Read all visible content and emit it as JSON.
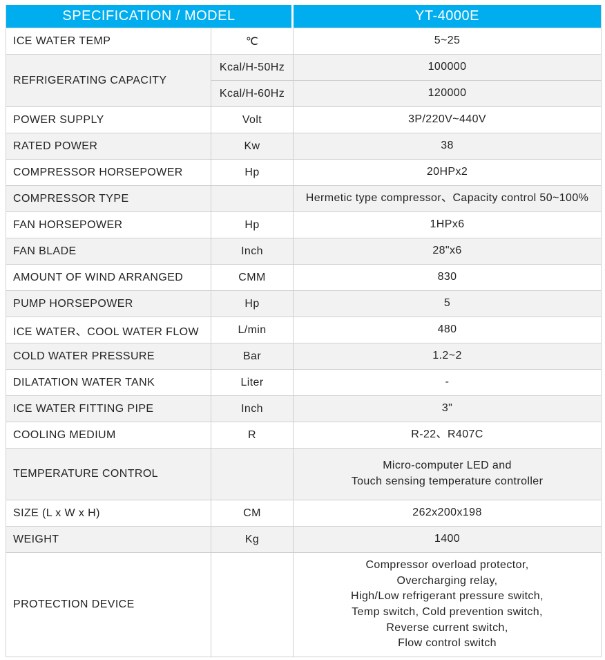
{
  "table": {
    "header": {
      "left": "SPECIFICATION / MODEL",
      "right": "YT-4000E"
    },
    "rows": [
      {
        "spec": "ICE WATER TEMP",
        "unit": "℃",
        "value": "5~25"
      },
      {
        "spec": "REFRIGERATING CAPACITY",
        "unit": "Kcal/H-50Hz",
        "value": "100000"
      },
      {
        "unit": "Kcal/H-60Hz",
        "value": "120000"
      },
      {
        "spec": "POWER SUPPLY",
        "unit": "Volt",
        "value": "3P/220V~440V"
      },
      {
        "spec": "RATED POWER",
        "unit": "Kw",
        "value": "38"
      },
      {
        "spec": "COMPRESSOR HORSEPOWER",
        "unit": "Hp",
        "value": "20HPx2"
      },
      {
        "spec": "COMPRESSOR TYPE",
        "unit": "",
        "value": "Hermetic type compressor、Capacity control 50~100%"
      },
      {
        "spec": "FAN HORSEPOWER",
        "unit": "Hp",
        "value": "1HPx6"
      },
      {
        "spec": "FAN BLADE",
        "unit": "Inch",
        "value": "28\"x6"
      },
      {
        "spec": "AMOUNT OF WIND ARRANGED",
        "unit": "CMM",
        "value": "830"
      },
      {
        "spec": "PUMP HORSEPOWER",
        "unit": "Hp",
        "value": "5"
      },
      {
        "spec": "ICE WATER、COOL WATER FLOW",
        "unit": "L/min",
        "value": "480"
      },
      {
        "spec": "COLD WATER PRESSURE",
        "unit": "Bar",
        "value": "1.2~2"
      },
      {
        "spec": "DILATATION WATER TANK",
        "unit": "Liter",
        "value": "-"
      },
      {
        "spec": "ICE WATER FITTING PIPE",
        "unit": "Inch",
        "value": "3\""
      },
      {
        "spec": "COOLING MEDIUM",
        "unit": "R",
        "value": "R-22、R407C"
      },
      {
        "spec": "TEMPERATURE CONTROL",
        "unit": "",
        "value": "Micro-computer LED and\nTouch sensing temperature controller"
      },
      {
        "spec": "SIZE (L x W x H)",
        "unit": "CM",
        "value": "262x200x198"
      },
      {
        "spec": "WEIGHT",
        "unit": "Kg",
        "value": "1400"
      },
      {
        "spec": "PROTECTION DEVICE",
        "unit": "",
        "value": "Compressor overload protector,\nOvercharging relay,\nHigh/Low refrigerant pressure switch,\nTemp switch, Cold prevention switch,\nReverse current switch,\nFlow control switch"
      }
    ],
    "colors": {
      "header_bg": "#00AEEF",
      "header_text": "#FFFFFF",
      "stripe_bg": "#F2F2F2",
      "border": "#CFCFCF",
      "body_text": "#232323"
    }
  }
}
